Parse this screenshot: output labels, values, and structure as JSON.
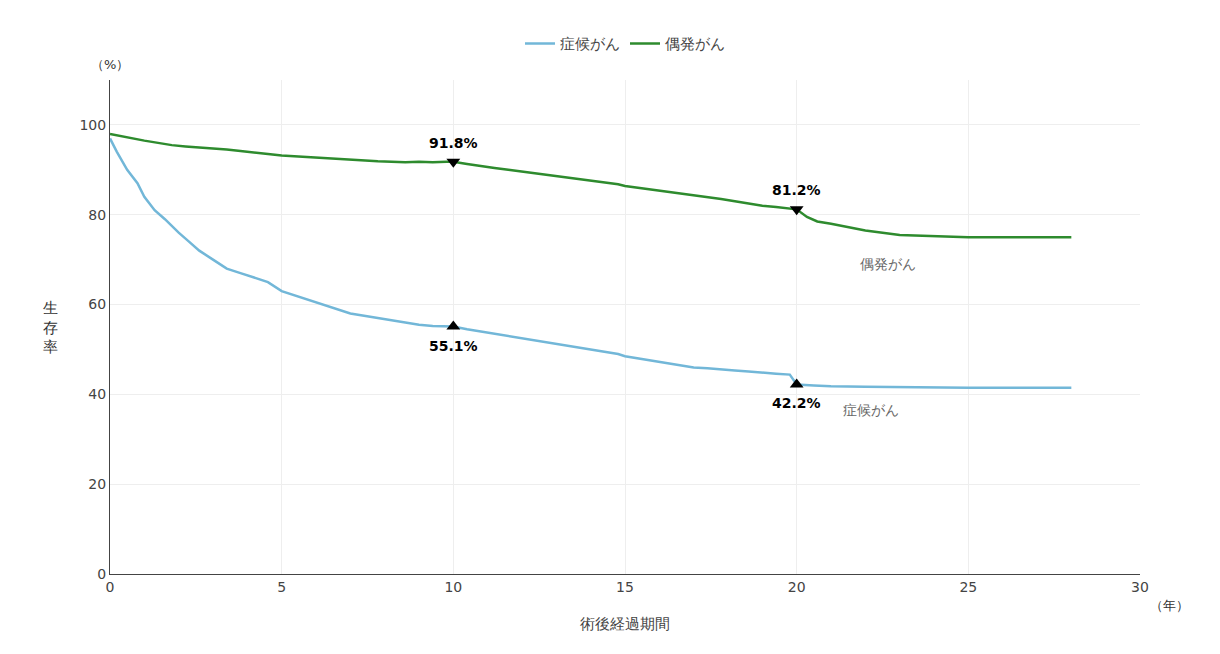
{
  "chart_data": {
    "type": "line",
    "title": "",
    "xlabel": "術後経過期間",
    "ylabel": "生\n存\n率",
    "ylabel_unit": "（%）",
    "xlabel_unit": "（年）",
    "xlim": [
      0,
      30
    ],
    "ylim": [
      0,
      110
    ],
    "xticks": [
      0,
      5,
      10,
      15,
      20,
      25,
      30
    ],
    "yticks": [
      0,
      20,
      40,
      60,
      80,
      100
    ],
    "grid": true,
    "legend": "upper center",
    "series": [
      {
        "name": "症候がん",
        "color": "#72b7d8",
        "x": [
          0,
          0.2,
          0.5,
          0.8,
          1.0,
          1.3,
          1.6,
          2.0,
          2.3,
          2.6,
          3.0,
          3.4,
          3.8,
          4.2,
          4.6,
          5.0,
          5.4,
          5.8,
          6.2,
          6.6,
          7.0,
          7.4,
          7.8,
          8.2,
          8.6,
          9.0,
          9.4,
          9.8,
          10.0,
          10.4,
          10.8,
          11.2,
          11.6,
          12.0,
          12.4,
          12.8,
          13.2,
          13.6,
          14.0,
          14.4,
          14.8,
          15.0,
          15.4,
          15.8,
          16.2,
          16.6,
          17.0,
          17.4,
          17.8,
          18.2,
          18.6,
          19.0,
          19.4,
          19.8,
          20.0,
          20.5,
          21.0,
          22.0,
          23.0,
          24.0,
          25.0,
          26.0,
          27.0,
          28.0
        ],
        "values": [
          97,
          94,
          90,
          87,
          84,
          81,
          79,
          76,
          74,
          72,
          70,
          68,
          67,
          66,
          65,
          63,
          62,
          61,
          60,
          59,
          58,
          57.5,
          57,
          56.5,
          56,
          55.5,
          55.2,
          55.1,
          55.1,
          54.5,
          54,
          53.5,
          53,
          52.5,
          52,
          51.5,
          51,
          50.5,
          50,
          49.5,
          49,
          48.5,
          48,
          47.5,
          47.0,
          46.5,
          46.0,
          45.8,
          45.5,
          45.3,
          45.1,
          44.8,
          44.6,
          44.4,
          42.2,
          42.0,
          41.8,
          41.7,
          41.6,
          41.5,
          41.5,
          41.5,
          41.5,
          41.5
        ]
      },
      {
        "name": "偶発がん",
        "color": "#2e8b2e",
        "x": [
          0,
          0.3,
          0.7,
          1.0,
          1.4,
          1.8,
          2.2,
          2.6,
          3.0,
          3.4,
          3.8,
          4.2,
          4.6,
          5.0,
          5.4,
          5.8,
          6.2,
          6.6,
          7.0,
          7.4,
          7.8,
          8.2,
          8.6,
          9.0,
          9.4,
          9.8,
          10.0,
          10.4,
          10.8,
          11.2,
          11.6,
          12.0,
          12.4,
          12.8,
          13.2,
          13.6,
          14.0,
          14.4,
          14.8,
          15.0,
          15.4,
          15.8,
          16.2,
          16.6,
          17.0,
          17.4,
          17.8,
          18.2,
          18.6,
          19.0,
          19.4,
          19.8,
          20.0,
          20.3,
          20.6,
          21.0,
          22.0,
          23.0,
          24.0,
          25.0,
          26.0,
          27.0,
          28.0
        ],
        "values": [
          98,
          97.5,
          97,
          96.5,
          96,
          95.5,
          95.2,
          95.0,
          94.8,
          94.5,
          94.2,
          93.8,
          93.5,
          93.2,
          93.0,
          92.8,
          92.6,
          92.4,
          92.2,
          92.0,
          91.9,
          91.8,
          91.7,
          91.8,
          91.7,
          91.8,
          91.8,
          91.3,
          90.8,
          90.4,
          90.0,
          89.6,
          89.2,
          88.8,
          88.4,
          88.0,
          87.6,
          87.2,
          86.8,
          86.4,
          86.0,
          85.6,
          85.2,
          84.8,
          84.4,
          84.0,
          83.5,
          83.0,
          82.5,
          82.0,
          81.7,
          81.4,
          81.2,
          79.5,
          78.5,
          78.0,
          76.5,
          75.5,
          75.2,
          75.0,
          75.0,
          75.0,
          75.0
        ]
      }
    ],
    "annotations": [
      {
        "text": "91.8%",
        "x": 10.0,
        "y": 91.8,
        "marker": "triangle-down"
      },
      {
        "text": "81.2%",
        "x": 20.0,
        "y": 81.2,
        "marker": "triangle-down"
      },
      {
        "text": "55.1%",
        "x": 10.0,
        "y": 55.1,
        "marker": "triangle-up"
      },
      {
        "text": "42.2%",
        "x": 20.0,
        "y": 42.2,
        "marker": "triangle-up"
      },
      {
        "text": "偶発がん",
        "x": 21.8,
        "y": 69
      },
      {
        "text": "症候がん",
        "x": 21.3,
        "y": 36.5
      }
    ]
  }
}
